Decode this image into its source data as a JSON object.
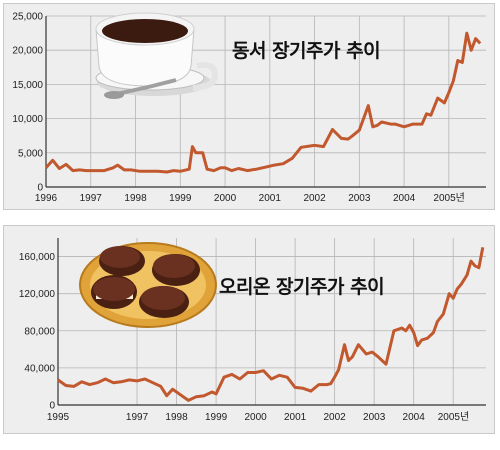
{
  "chart_data": [
    {
      "type": "line",
      "title": "동서 장기주가 추이",
      "illustration": "coffee-cup-icon",
      "line_color": "#c1582e",
      "ylim": [
        0,
        25000
      ],
      "xlim": [
        1996,
        2005.83
      ],
      "y_ticks": [
        0,
        5000,
        10000,
        15000,
        20000,
        25000
      ],
      "y_tick_labels": [
        "0",
        "5,000",
        "10,000",
        "15,000",
        "20,000",
        "25,000"
      ],
      "x_ticks": [
        1996,
        1997,
        1998,
        1999,
        2000,
        2001,
        2002,
        2003,
        2004,
        2005
      ],
      "x_tick_labels": [
        "1996",
        "1997",
        "1998",
        "1999",
        "2000",
        "2001",
        "2002",
        "2003",
        "2004",
        "2005년"
      ],
      "grid": true,
      "x": [
        1996.0,
        1996.15,
        1996.3,
        1996.45,
        1996.6,
        1996.75,
        1996.9,
        1997.1,
        1997.3,
        1997.5,
        1997.6,
        1997.75,
        1997.9,
        1998.1,
        1998.3,
        1998.5,
        1998.7,
        1998.85,
        1999.0,
        1999.2,
        1999.27,
        1999.35,
        1999.5,
        1999.6,
        1999.75,
        1999.9,
        2000.0,
        2000.15,
        2000.3,
        2000.5,
        2000.7,
        2000.9,
        2001.1,
        2001.3,
        2001.5,
        2001.7,
        2001.9,
        2002.0,
        2002.2,
        2002.4,
        2002.6,
        2002.75,
        2002.85,
        2003.0,
        2003.2,
        2003.3,
        2003.4,
        2003.5,
        2003.7,
        2003.8,
        2004.0,
        2004.2,
        2004.4,
        2004.5,
        2004.6,
        2004.75,
        2004.9,
        2005.0,
        2005.1,
        2005.2,
        2005.3,
        2005.4,
        2005.5,
        2005.6,
        2005.7
      ],
      "values": [
        2800,
        3900,
        2700,
        3300,
        2400,
        2500,
        2400,
        2400,
        2400,
        2800,
        3200,
        2500,
        2500,
        2300,
        2300,
        2300,
        2200,
        2400,
        2300,
        2600,
        5900,
        5000,
        5000,
        2600,
        2400,
        2800,
        2800,
        2400,
        2700,
        2400,
        2600,
        2900,
        3200,
        3400,
        4200,
        5800,
        6000,
        6100,
        5900,
        8400,
        7100,
        7000,
        7500,
        8300,
        11900,
        8800,
        9000,
        9500,
        9200,
        9200,
        8800,
        9200,
        9200,
        10700,
        10500,
        13000,
        12300,
        13800,
        15500,
        18500,
        18200,
        22500,
        20000,
        21700,
        21000
      ]
    },
    {
      "type": "line",
      "title": "오리온 장기주가 추이",
      "illustration": "choco-pie-plate-icon",
      "line_color": "#c1582e",
      "ylim": [
        0,
        180000
      ],
      "xlim": [
        1995,
        2005.83
      ],
      "y_ticks": [
        0,
        40000,
        80000,
        120000,
        160000
      ],
      "y_tick_labels": [
        "0",
        "40,000",
        "80,000",
        "120,000",
        "160,000"
      ],
      "x_ticks": [
        1995,
        1997,
        1998,
        1999,
        2000,
        2001,
        2002,
        2003,
        2004,
        2005
      ],
      "x_tick_labels": [
        "1995",
        "1997",
        "1998",
        "1999",
        "2000",
        "2001",
        "2002",
        "2003",
        "2004",
        "2005년"
      ],
      "grid": true,
      "x": [
        1995.0,
        1995.2,
        1995.4,
        1995.6,
        1995.8,
        1996.0,
        1996.2,
        1996.4,
        1996.6,
        1996.8,
        1997.0,
        1997.2,
        1997.4,
        1997.6,
        1997.75,
        1997.9,
        1998.1,
        1998.3,
        1998.5,
        1998.7,
        1998.9,
        1999.0,
        1999.2,
        1999.4,
        1999.6,
        1999.8,
        2000.0,
        2000.2,
        2000.4,
        2000.6,
        2000.8,
        2001.0,
        2001.2,
        2001.4,
        2001.6,
        2001.8,
        2001.9,
        2002.0,
        2002.1,
        2002.25,
        2002.35,
        2002.45,
        2002.6,
        2002.8,
        2002.95,
        2003.1,
        2003.3,
        2003.5,
        2003.7,
        2003.8,
        2003.9,
        2004.0,
        2004.1,
        2004.2,
        2004.35,
        2004.5,
        2004.6,
        2004.75,
        2004.9,
        2005.0,
        2005.1,
        2005.2,
        2005.35,
        2005.45,
        2005.55,
        2005.65,
        2005.75
      ],
      "values": [
        27000,
        21000,
        20000,
        25000,
        22000,
        24000,
        28000,
        24000,
        25000,
        27000,
        26000,
        28000,
        24000,
        20000,
        10000,
        17000,
        11000,
        5000,
        9000,
        10000,
        14000,
        12000,
        30000,
        33000,
        28000,
        35000,
        35000,
        37000,
        28000,
        32000,
        30000,
        19000,
        18000,
        15000,
        22000,
        22000,
        23000,
        30000,
        38000,
        65000,
        48000,
        52000,
        65000,
        55000,
        57000,
        52000,
        44000,
        80000,
        83000,
        80000,
        86000,
        78000,
        64000,
        70000,
        72000,
        78000,
        90000,
        98000,
        120000,
        115000,
        125000,
        130000,
        140000,
        155000,
        150000,
        148000,
        170000
      ]
    }
  ]
}
